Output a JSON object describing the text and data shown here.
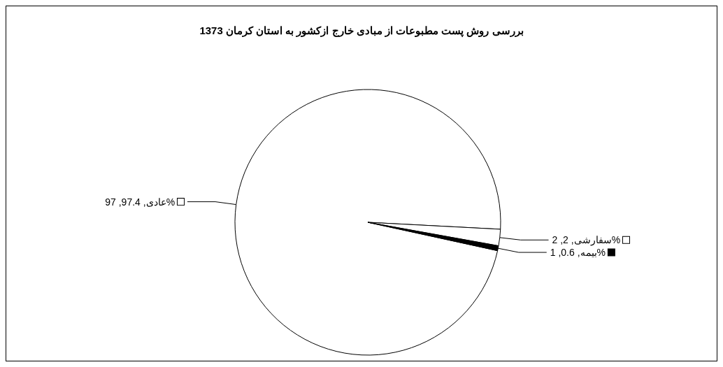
{
  "chart_data": {
    "type": "pie",
    "title": "بررسی روش پست مطبوعات از مبادی خارج ازکشور به استان کرمان 1373",
    "categories": [
      "عادی",
      "سفارشی",
      "بیمه"
    ],
    "values": [
      97.4,
      2,
      0.6
    ],
    "colors": [
      "#ffffff",
      "#ffffff",
      "#000000"
    ],
    "value_labels": [
      "97.4, 97%",
      "2, 2%",
      "0.6, 1%"
    ],
    "legend": "right"
  }
}
